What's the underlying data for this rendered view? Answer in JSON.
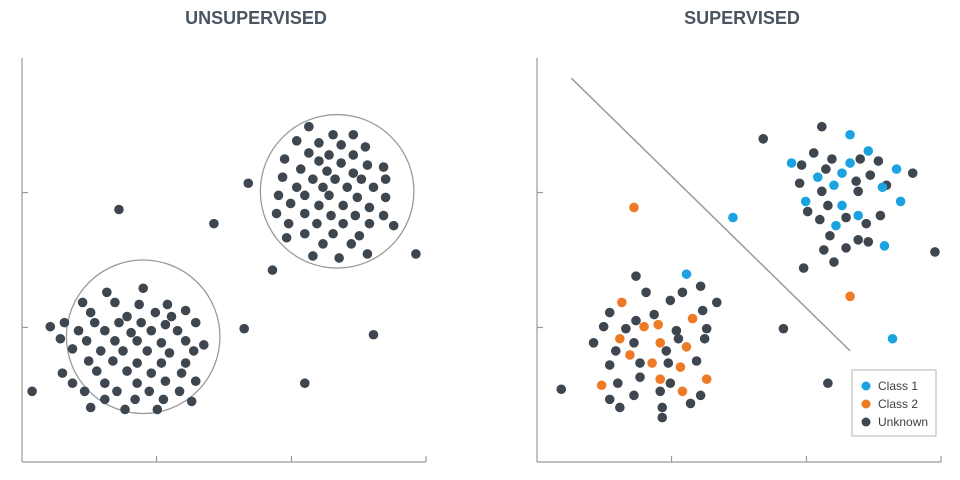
{
  "colors": {
    "unknown": "#3e4650",
    "class1": "#1aa3e0",
    "class2": "#ef7a26",
    "axis": "#9a9a9a",
    "title": "#4a5560"
  },
  "chart_data": [
    {
      "type": "scatter",
      "title": "UNSUPERVISED",
      "xlim": [
        0,
        10
      ],
      "ylim": [
        0,
        10
      ],
      "xticks": [
        3.33,
        6.67
      ],
      "yticks": [
        3.33,
        6.67
      ],
      "grid": false,
      "clusters": [
        {
          "cx": 3.0,
          "cy": 3.1,
          "r": 1.9
        },
        {
          "cx": 7.8,
          "cy": 6.7,
          "r": 1.9
        }
      ],
      "series": [
        {
          "values": [
            [
              0.25,
              1.75
            ],
            [
              2.4,
              6.25
            ],
            [
              4.75,
              5.9
            ],
            [
              5.6,
              6.9
            ],
            [
              6.2,
              4.75
            ],
            [
              5.5,
              3.3
            ],
            [
              8.7,
              3.15
            ],
            [
              9.75,
              5.15
            ],
            [
              7.0,
              1.95
            ],
            [
              2.1,
              4.2
            ],
            [
              1.5,
              3.95
            ],
            [
              2.3,
              3.95
            ],
            [
              2.9,
              3.9
            ],
            [
              3.6,
              3.9
            ],
            [
              4.05,
              3.75
            ],
            [
              1.7,
              3.7
            ],
            [
              3.3,
              3.7
            ],
            [
              2.6,
              3.6
            ],
            [
              3.7,
              3.6
            ],
            [
              1.05,
              3.45
            ],
            [
              1.8,
              3.45
            ],
            [
              2.4,
              3.45
            ],
            [
              2.95,
              3.45
            ],
            [
              3.55,
              3.4
            ],
            [
              4.3,
              3.45
            ],
            [
              1.4,
              3.25
            ],
            [
              2.05,
              3.25
            ],
            [
              2.7,
              3.2
            ],
            [
              3.2,
              3.25
            ],
            [
              3.85,
              3.25
            ],
            [
              0.95,
              3.05
            ],
            [
              1.6,
              3.0
            ],
            [
              2.3,
              3.0
            ],
            [
              2.85,
              3.0
            ],
            [
              3.45,
              2.95
            ],
            [
              4.05,
              3.0
            ],
            [
              4.5,
              2.9
            ],
            [
              1.25,
              2.8
            ],
            [
              1.95,
              2.75
            ],
            [
              2.5,
              2.75
            ],
            [
              3.1,
              2.75
            ],
            [
              3.65,
              2.7
            ],
            [
              4.25,
              2.75
            ],
            [
              0.7,
              3.35
            ],
            [
              1.65,
              2.5
            ],
            [
              2.25,
              2.5
            ],
            [
              2.85,
              2.45
            ],
            [
              3.45,
              2.45
            ],
            [
              4.05,
              2.45
            ],
            [
              1.0,
              2.2
            ],
            [
              1.85,
              2.25
            ],
            [
              2.6,
              2.25
            ],
            [
              3.2,
              2.2
            ],
            [
              3.95,
              2.2
            ],
            [
              1.25,
              1.95
            ],
            [
              2.05,
              1.95
            ],
            [
              2.85,
              1.95
            ],
            [
              3.55,
              2.0
            ],
            [
              4.3,
              2.0
            ],
            [
              1.55,
              1.75
            ],
            [
              2.35,
              1.75
            ],
            [
              3.15,
              1.75
            ],
            [
              3.9,
              1.75
            ],
            [
              2.05,
              1.55
            ],
            [
              2.8,
              1.55
            ],
            [
              3.5,
              1.55
            ],
            [
              1.7,
              1.35
            ],
            [
              2.55,
              1.3
            ],
            [
              3.35,
              1.3
            ],
            [
              4.2,
              1.5
            ],
            [
              3.0,
              4.3
            ],
            [
              7.1,
              8.3
            ],
            [
              7.7,
              8.1
            ],
            [
              8.2,
              8.1
            ],
            [
              6.8,
              7.95
            ],
            [
              7.35,
              7.9
            ],
            [
              7.9,
              7.85
            ],
            [
              8.5,
              7.8
            ],
            [
              7.1,
              7.65
            ],
            [
              7.6,
              7.6
            ],
            [
              8.2,
              7.6
            ],
            [
              6.5,
              7.5
            ],
            [
              7.35,
              7.45
            ],
            [
              7.9,
              7.4
            ],
            [
              8.55,
              7.35
            ],
            [
              8.95,
              7.3
            ],
            [
              6.9,
              7.25
            ],
            [
              7.55,
              7.2
            ],
            [
              8.2,
              7.15
            ],
            [
              6.45,
              7.05
            ],
            [
              7.2,
              7.0
            ],
            [
              7.75,
              7.0
            ],
            [
              8.4,
              7.0
            ],
            [
              9.0,
              7.0
            ],
            [
              6.8,
              6.8
            ],
            [
              7.45,
              6.8
            ],
            [
              8.05,
              6.8
            ],
            [
              8.7,
              6.8
            ],
            [
              6.35,
              6.6
            ],
            [
              7.0,
              6.6
            ],
            [
              7.6,
              6.6
            ],
            [
              8.3,
              6.55
            ],
            [
              9.0,
              6.55
            ],
            [
              6.65,
              6.4
            ],
            [
              7.35,
              6.35
            ],
            [
              7.95,
              6.35
            ],
            [
              8.6,
              6.3
            ],
            [
              6.3,
              6.15
            ],
            [
              7.0,
              6.15
            ],
            [
              7.65,
              6.1
            ],
            [
              8.25,
              6.1
            ],
            [
              8.95,
              6.1
            ],
            [
              6.6,
              5.9
            ],
            [
              7.3,
              5.9
            ],
            [
              7.95,
              5.9
            ],
            [
              8.6,
              5.9
            ],
            [
              7.0,
              5.65
            ],
            [
              7.7,
              5.65
            ],
            [
              8.35,
              5.6
            ],
            [
              7.45,
              5.4
            ],
            [
              8.15,
              5.4
            ],
            [
              7.2,
              5.1
            ],
            [
              7.85,
              5.05
            ],
            [
              8.55,
              5.15
            ],
            [
              6.55,
              5.55
            ],
            [
              9.2,
              5.85
            ]
          ]
        }
      ]
    },
    {
      "type": "scatter",
      "title": "SUPERVISED",
      "xlim": [
        0,
        10
      ],
      "ylim": [
        0,
        10
      ],
      "xticks": [
        3.33,
        6.67
      ],
      "yticks": [
        3.33,
        6.67
      ],
      "grid": false,
      "legend_position": "bottom-right",
      "decision_boundary": [
        [
          0.85,
          9.5
        ],
        [
          7.75,
          2.75
        ]
      ],
      "series": [
        {
          "name": "Class 1",
          "color_key": "class1",
          "values": [
            [
              7.75,
              8.1
            ],
            [
              6.3,
              7.4
            ],
            [
              7.75,
              7.4
            ],
            [
              8.2,
              7.7
            ],
            [
              7.55,
              7.15
            ],
            [
              6.95,
              7.05
            ],
            [
              8.9,
              7.25
            ],
            [
              7.35,
              6.85
            ],
            [
              8.55,
              6.8
            ],
            [
              6.65,
              6.45
            ],
            [
              7.55,
              6.35
            ],
            [
              9.0,
              6.45
            ],
            [
              7.95,
              6.1
            ],
            [
              7.4,
              5.85
            ],
            [
              8.6,
              5.35
            ],
            [
              4.85,
              6.05
            ],
            [
              3.7,
              4.65
            ],
            [
              8.8,
              3.05
            ]
          ]
        },
        {
          "name": "Class 2",
          "color_key": "class2",
          "values": [
            [
              2.4,
              6.3
            ],
            [
              2.1,
              3.95
            ],
            [
              3.0,
              3.4
            ],
            [
              3.85,
              3.55
            ],
            [
              2.65,
              3.35
            ],
            [
              2.05,
              3.05
            ],
            [
              3.05,
              2.95
            ],
            [
              3.7,
              2.85
            ],
            [
              2.3,
              2.65
            ],
            [
              2.85,
              2.45
            ],
            [
              3.55,
              2.35
            ],
            [
              3.05,
              2.05
            ],
            [
              4.2,
              2.05
            ],
            [
              1.6,
              1.9
            ],
            [
              3.6,
              1.75
            ],
            [
              7.75,
              4.1
            ]
          ]
        },
        {
          "name": "Unknown",
          "color_key": "unknown",
          "values": [
            [
              0.6,
              1.8
            ],
            [
              5.6,
              8.0
            ],
            [
              7.05,
              8.3
            ],
            [
              6.55,
              7.35
            ],
            [
              7.3,
              7.5
            ],
            [
              8.0,
              7.5
            ],
            [
              8.45,
              7.45
            ],
            [
              6.85,
              7.65
            ],
            [
              7.15,
              7.25
            ],
            [
              6.5,
              6.9
            ],
            [
              7.05,
              6.7
            ],
            [
              7.9,
              6.95
            ],
            [
              8.25,
              7.1
            ],
            [
              9.3,
              7.15
            ],
            [
              6.7,
              6.2
            ],
            [
              7.2,
              6.35
            ],
            [
              7.95,
              6.7
            ],
            [
              8.65,
              6.85
            ],
            [
              7.0,
              6.0
            ],
            [
              7.65,
              6.05
            ],
            [
              8.15,
              5.9
            ],
            [
              8.5,
              6.1
            ],
            [
              7.25,
              5.6
            ],
            [
              7.95,
              5.5
            ],
            [
              8.2,
              5.45
            ],
            [
              7.1,
              5.25
            ],
            [
              7.65,
              5.3
            ],
            [
              9.85,
              5.2
            ],
            [
              6.6,
              4.8
            ],
            [
              7.35,
              4.95
            ],
            [
              6.1,
              3.3
            ],
            [
              7.2,
              1.95
            ],
            [
              2.45,
              4.6
            ],
            [
              1.8,
              3.7
            ],
            [
              2.9,
              3.65
            ],
            [
              4.1,
              3.75
            ],
            [
              3.3,
              4.0
            ],
            [
              2.2,
              3.3
            ],
            [
              2.45,
              3.5
            ],
            [
              3.45,
              3.25
            ],
            [
              1.65,
              3.35
            ],
            [
              1.4,
              2.95
            ],
            [
              1.95,
              2.75
            ],
            [
              2.4,
              2.95
            ],
            [
              3.2,
              2.75
            ],
            [
              3.5,
              3.05
            ],
            [
              4.15,
              3.05
            ],
            [
              1.8,
              2.4
            ],
            [
              2.55,
              2.45
            ],
            [
              3.25,
              2.45
            ],
            [
              3.95,
              2.5
            ],
            [
              2.0,
              1.95
            ],
            [
              2.55,
              2.1
            ],
            [
              3.3,
              1.95
            ],
            [
              1.8,
              1.55
            ],
            [
              2.4,
              1.65
            ],
            [
              3.05,
              1.75
            ],
            [
              2.05,
              1.35
            ],
            [
              3.1,
              1.35
            ],
            [
              3.8,
              1.45
            ],
            [
              4.05,
              1.65
            ],
            [
              3.1,
              1.1
            ],
            [
              2.7,
              4.2
            ],
            [
              3.6,
              4.2
            ],
            [
              4.05,
              4.35
            ],
            [
              4.2,
              3.3
            ],
            [
              4.45,
              3.95
            ]
          ]
        }
      ]
    }
  ]
}
